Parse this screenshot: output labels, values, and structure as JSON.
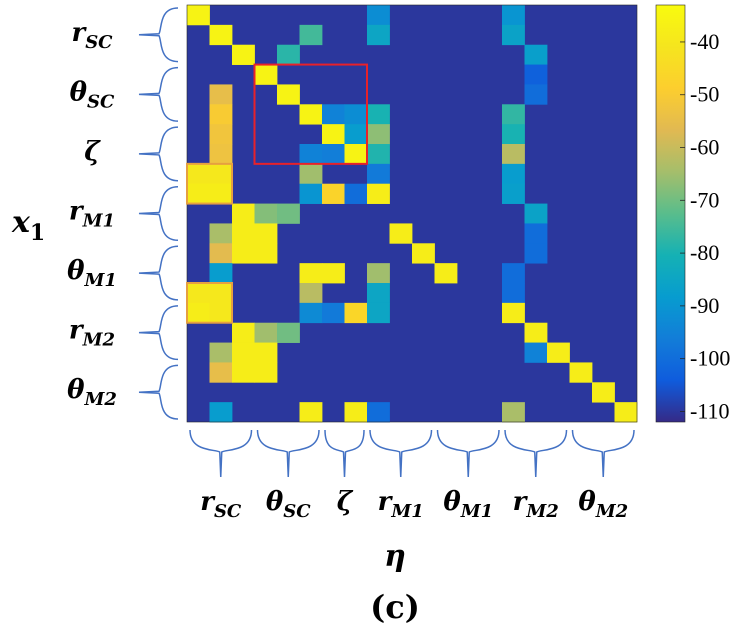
{
  "chart_data": {
    "type": "heatmap",
    "title": "",
    "caption": "(c)",
    "xlabel": "η",
    "ylabel": "x",
    "ylabel_sub": "1",
    "row_groups": [
      {
        "sym": "r",
        "sub": "SC"
      },
      {
        "sym": "θ",
        "sub": "SC"
      },
      {
        "sym": "ζ",
        "sub": ""
      },
      {
        "sym": "r",
        "sub": "M1"
      },
      {
        "sym": "θ",
        "sub": "M1"
      },
      {
        "sym": "r",
        "sub": "M2"
      },
      {
        "sym": "θ",
        "sub": "M2"
      }
    ],
    "col_groups": [
      {
        "sym": "r",
        "sub": "SC"
      },
      {
        "sym": "θ",
        "sub": "SC"
      },
      {
        "sym": "ζ",
        "sub": ""
      },
      {
        "sym": "r",
        "sub": "M1"
      },
      {
        "sym": "θ",
        "sub": "M1"
      },
      {
        "sym": "r",
        "sub": "M2"
      },
      {
        "sym": "θ",
        "sub": "M2"
      }
    ],
    "row_group_sizes": [
      3,
      3,
      3,
      3,
      3,
      3,
      3
    ],
    "col_group_sizes": [
      3,
      3,
      2,
      3,
      3,
      3,
      3
    ],
    "colorbar": {
      "min": -112,
      "max": -33,
      "ticks": [
        -40,
        -50,
        -60,
        -70,
        -80,
        -90,
        -100,
        -110
      ]
    },
    "background_value": -110,
    "nrows": 21,
    "ncols": 20,
    "cells": [
      [
        0,
        0,
        -36
      ],
      [
        0,
        8,
        -92
      ],
      [
        0,
        14,
        -90
      ],
      [
        1,
        1,
        -36
      ],
      [
        1,
        5,
        -75
      ],
      [
        1,
        8,
        -85
      ],
      [
        1,
        14,
        -86
      ],
      [
        2,
        2,
        -36
      ],
      [
        2,
        4,
        -78
      ],
      [
        2,
        15,
        -87
      ],
      [
        3,
        3,
        -36
      ],
      [
        3,
        15,
        -103
      ],
      [
        4,
        1,
        -55
      ],
      [
        4,
        4,
        -36
      ],
      [
        4,
        15,
        -100
      ],
      [
        5,
        1,
        -50
      ],
      [
        5,
        5,
        -36
      ],
      [
        5,
        6,
        -95
      ],
      [
        5,
        7,
        -92
      ],
      [
        5,
        8,
        -80
      ],
      [
        5,
        14,
        -77
      ],
      [
        6,
        1,
        -52
      ],
      [
        6,
        6,
        -36
      ],
      [
        6,
        7,
        -88
      ],
      [
        6,
        8,
        -67
      ],
      [
        6,
        14,
        -80
      ],
      [
        7,
        1,
        -53
      ],
      [
        7,
        5,
        -95
      ],
      [
        7,
        6,
        -96
      ],
      [
        7,
        7,
        -36
      ],
      [
        7,
        8,
        -79
      ],
      [
        7,
        14,
        -62
      ],
      [
        8,
        0,
        -40
      ],
      [
        8,
        1,
        -40
      ],
      [
        8,
        5,
        -65
      ],
      [
        8,
        8,
        -97
      ],
      [
        8,
        14,
        -88
      ],
      [
        9,
        0,
        -38
      ],
      [
        9,
        1,
        -38
      ],
      [
        9,
        5,
        -90
      ],
      [
        9,
        6,
        -47
      ],
      [
        9,
        7,
        -100
      ],
      [
        9,
        8,
        -38
      ],
      [
        9,
        14,
        -87
      ],
      [
        10,
        2,
        -38
      ],
      [
        10,
        3,
        -68
      ],
      [
        10,
        4,
        -70
      ],
      [
        10,
        15,
        -86
      ],
      [
        11,
        1,
        -64
      ],
      [
        11,
        2,
        -38
      ],
      [
        11,
        3,
        -38
      ],
      [
        11,
        9,
        -38
      ],
      [
        11,
        15,
        -100
      ],
      [
        12,
        1,
        -56
      ],
      [
        12,
        2,
        -38
      ],
      [
        12,
        3,
        -38
      ],
      [
        12,
        10,
        -38
      ],
      [
        12,
        15,
        -100
      ],
      [
        13,
        1,
        -88
      ],
      [
        13,
        5,
        -38
      ],
      [
        13,
        6,
        -38
      ],
      [
        13,
        8,
        -65
      ],
      [
        13,
        11,
        -38
      ],
      [
        13,
        14,
        -100
      ],
      [
        14,
        0,
        -40
      ],
      [
        14,
        1,
        -40
      ],
      [
        14,
        5,
        -62
      ],
      [
        14,
        8,
        -85
      ],
      [
        14,
        14,
        -100
      ],
      [
        15,
        0,
        -38
      ],
      [
        15,
        1,
        -40
      ],
      [
        15,
        5,
        -93
      ],
      [
        15,
        6,
        -97
      ],
      [
        15,
        7,
        -46
      ],
      [
        15,
        8,
        -85
      ],
      [
        15,
        14,
        -38
      ],
      [
        16,
        2,
        -38
      ],
      [
        16,
        3,
        -65
      ],
      [
        16,
        4,
        -70
      ],
      [
        16,
        15,
        -38
      ],
      [
        17,
        1,
        -64
      ],
      [
        17,
        2,
        -38
      ],
      [
        17,
        3,
        -38
      ],
      [
        17,
        15,
        -95
      ],
      [
        17,
        16,
        -38
      ],
      [
        18,
        1,
        -55
      ],
      [
        18,
        2,
        -38
      ],
      [
        18,
        3,
        -38
      ],
      [
        18,
        17,
        -38
      ],
      [
        19,
        18,
        -38
      ],
      [
        20,
        1,
        -88
      ],
      [
        20,
        5,
        -38
      ],
      [
        20,
        7,
        -38
      ],
      [
        20,
        8,
        -100
      ],
      [
        20,
        14,
        -64
      ],
      [
        20,
        19,
        -38
      ]
    ],
    "highlight_boxes": [
      {
        "color": "#e8212a",
        "rows": [
          3,
          8
        ],
        "cols": [
          3,
          8
        ]
      },
      {
        "color": "#e6a040",
        "rows": [
          8,
          10
        ],
        "cols": [
          0,
          2
        ]
      },
      {
        "color": "#e6a040",
        "rows": [
          14,
          16
        ],
        "cols": [
          0,
          2
        ]
      }
    ]
  }
}
